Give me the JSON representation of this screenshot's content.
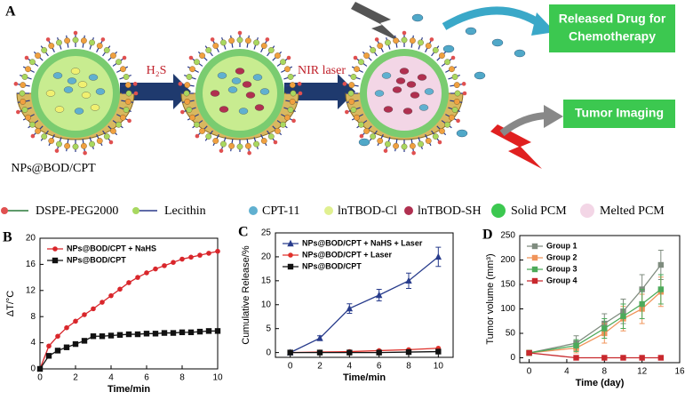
{
  "schematic": {
    "label": "A",
    "step1": "H₂S",
    "step2": "NIR laser",
    "particle": "NPs@BOD/CPT",
    "released_drug": [
      "Released Drug for",
      "Chemotherapy"
    ],
    "imaging": "Tumor Imaging",
    "legend": [
      "DSPE-PEG2000",
      "Lecithin",
      "CPT-11",
      "lnTBOD-Cl",
      "lnTBOD-SH",
      "Solid PCM",
      "Melted PCM"
    ]
  },
  "chart_data": [
    {
      "type": "line",
      "label": "B",
      "xlabel": "Time/min",
      "ylabel": "ΔT/°C",
      "x": [
        0,
        0.5,
        1,
        1.5,
        2,
        2.5,
        3,
        3.5,
        4,
        4.5,
        5,
        5.5,
        6,
        6.5,
        7,
        7.5,
        8,
        8.5,
        9,
        9.5,
        10
      ],
      "series": [
        {
          "name": "NPs@BOD/CPT + NaHS",
          "color": "#d9262b",
          "marker": "circle",
          "values": [
            0,
            3.5,
            5,
            6.3,
            7.3,
            8.3,
            9.2,
            10.2,
            11.2,
            12.2,
            13.2,
            14,
            14.7,
            15.3,
            15.8,
            16.3,
            16.8,
            17.1,
            17.4,
            17.7,
            18
          ]
        },
        {
          "name": "NPs@BOD/CPT",
          "color": "#111111",
          "marker": "square",
          "values": [
            0,
            2,
            2.8,
            3.3,
            3.8,
            4.3,
            5,
            5,
            5.1,
            5.2,
            5.3,
            5.3,
            5.4,
            5.4,
            5.5,
            5.5,
            5.6,
            5.6,
            5.7,
            5.8,
            5.8
          ]
        }
      ],
      "xlim": [
        0,
        10
      ],
      "xticks": [
        0,
        2,
        4,
        6,
        8,
        10
      ],
      "ylim": [
        0,
        20
      ],
      "yticks": [
        0,
        4,
        8,
        12,
        16,
        20
      ],
      "legend": "upper left"
    },
    {
      "type": "line",
      "label": "C",
      "xlabel": "Time/min",
      "ylabel": "Cumulative Release/%",
      "x": [
        0,
        2,
        4,
        6,
        8,
        10
      ],
      "series": [
        {
          "name": "NPs@BOD/CPT + NaHS + Laser",
          "color": "#283c8c",
          "marker": "triangle",
          "values": [
            0,
            3,
            9.2,
            12,
            15,
            20
          ],
          "errors": [
            0,
            0.5,
            1,
            1.2,
            1.6,
            2
          ]
        },
        {
          "name": "NPs@BOD/CPT + Laser",
          "color": "#e0312b",
          "marker": "circle",
          "values": [
            0,
            0.1,
            0.2,
            0.4,
            0.6,
            0.9
          ]
        },
        {
          "name": "NPs@BOD/CPT",
          "color": "#111111",
          "marker": "square",
          "values": [
            0,
            0,
            0,
            0,
            0.1,
            0.2
          ]
        }
      ],
      "xlim": [
        -1,
        11
      ],
      "xticks": [
        0,
        2,
        4,
        6,
        8,
        10
      ],
      "ylim": [
        -1,
        25
      ],
      "yticks": [
        0,
        5,
        10,
        15,
        20,
        25
      ],
      "legend": "upper left"
    },
    {
      "type": "line",
      "label": "D",
      "xlabel": "Time (day)",
      "ylabel": "Tumor volume (mm³)",
      "x": [
        0,
        5,
        8,
        10,
        12,
        14
      ],
      "series": [
        {
          "name": "Group 1",
          "color": "#7f8c7f",
          "marker": "square",
          "values": [
            10,
            30,
            70,
            95,
            140,
            190
          ],
          "errors": [
            5,
            15,
            20,
            25,
            30,
            30
          ]
        },
        {
          "name": "Group 2",
          "color": "#f0945a",
          "marker": "square",
          "values": [
            10,
            20,
            50,
            80,
            100,
            135
          ],
          "errors": [
            5,
            10,
            20,
            25,
            30,
            30
          ]
        },
        {
          "name": "Group 3",
          "color": "#4caa5a",
          "marker": "square",
          "values": [
            10,
            25,
            60,
            85,
            110,
            140
          ],
          "errors": [
            5,
            12,
            20,
            25,
            30,
            30
          ]
        },
        {
          "name": "Group 4",
          "color": "#c8282d",
          "marker": "square",
          "values": [
            10,
            0,
            0,
            0,
            0,
            0
          ],
          "errors": [
            3,
            0,
            0,
            0,
            0,
            0
          ]
        }
      ],
      "xlim": [
        -1,
        16
      ],
      "xticks": [
        0,
        4,
        8,
        12,
        16
      ],
      "ylim": [
        -10,
        250
      ],
      "yticks": [
        0,
        50,
        100,
        150,
        200,
        250
      ],
      "legend": "upper left"
    }
  ]
}
